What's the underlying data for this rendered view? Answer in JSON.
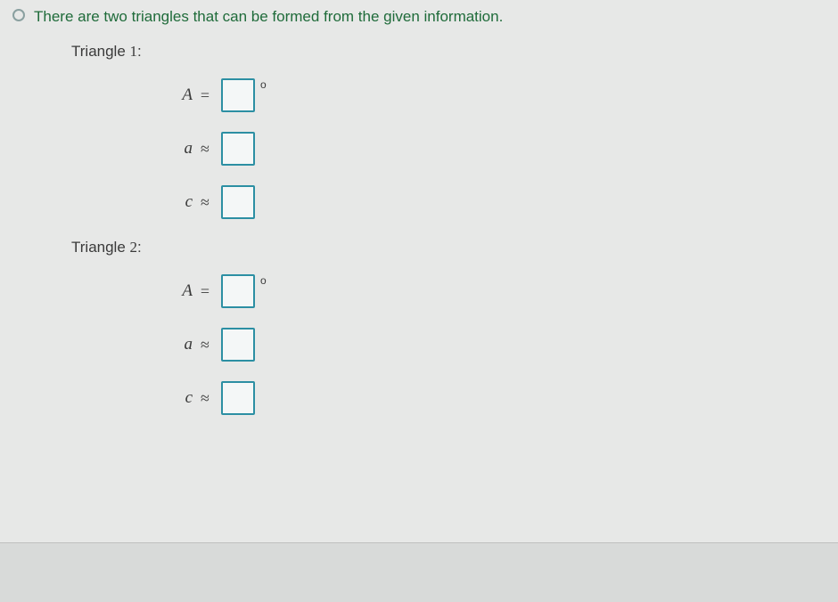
{
  "option": {
    "text": "There are two triangles that can be formed from the given information."
  },
  "triangles": [
    {
      "title_prefix": "Triangle ",
      "title_number": "1",
      "title_suffix": ":",
      "rows": [
        {
          "var": "A",
          "op": "=",
          "value": "",
          "unit": "o"
        },
        {
          "var": "a",
          "op": "≈",
          "value": "",
          "unit": ""
        },
        {
          "var": "c",
          "op": "≈",
          "value": "",
          "unit": ""
        }
      ]
    },
    {
      "title_prefix": "Triangle ",
      "title_number": "2",
      "title_suffix": ":",
      "rows": [
        {
          "var": "A",
          "op": "=",
          "value": "",
          "unit": "o"
        },
        {
          "var": "a",
          "op": "≈",
          "value": "",
          "unit": ""
        },
        {
          "var": "c",
          "op": "≈",
          "value": "",
          "unit": ""
        }
      ]
    }
  ],
  "colors": {
    "accent_text": "#1f6b3a",
    "input_border": "#2c8fa3",
    "panel_bg": "#e7e8e7",
    "page_bg": "#d8dad9"
  }
}
